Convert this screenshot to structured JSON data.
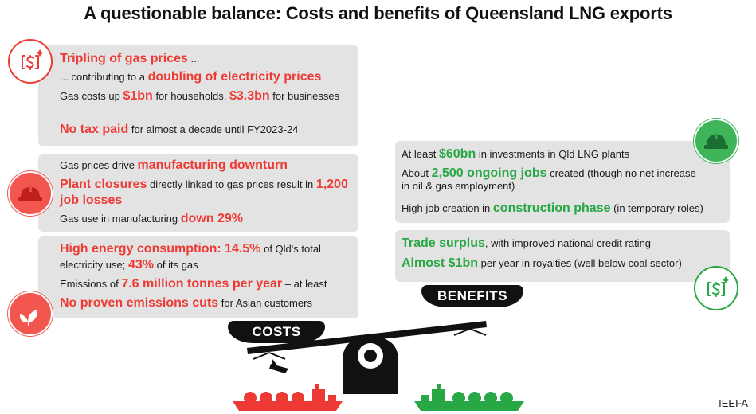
{
  "title": "A questionable balance: Costs and benefits of Queensland LNG exports",
  "costs": {
    "label": "COSTS",
    "box1": {
      "l1": {
        "hl": "Tripling of gas prices",
        "t": " ..."
      },
      "l2": {
        "t": "... contributing to a ",
        "hl": "doubling of electricity prices"
      },
      "l3": {
        "t1": "Gas costs up ",
        "hl1": "$1bn",
        "t2": " for households, ",
        "hl2": "$3.3bn",
        "t3": " for businesses"
      },
      "l4": {
        "hl": "No tax paid",
        "t": " for almost a decade until FY2023-24"
      }
    },
    "box2": {
      "l1": {
        "t": "Gas prices drive ",
        "hl": "manufacturing downturn"
      },
      "l2": {
        "hl1": "Plant closures",
        "t": " directly linked to gas prices result in ",
        "hl2": "1,200 job losses"
      },
      "l3": {
        "t": "Gas use in manufacturing ",
        "hl": "down 29%"
      }
    },
    "box3": {
      "l1": {
        "hl1": "High energy consumption: 14.5%",
        "t1": " of Qld's total electricity use; ",
        "hl2": "43%",
        "t2": " of its gas"
      },
      "l2": {
        "t1": "Emissions of ",
        "hl": "7.6 million tonnes per year",
        "t2": " – at least"
      },
      "l3": {
        "hl": "No proven emissions cuts",
        "t": " for Asian customers"
      }
    }
  },
  "benefits": {
    "label": "BENEFITS",
    "box1": {
      "l1": {
        "t1": "At least ",
        "hl": "$60bn",
        "t2": " in investments in Qld LNG plants"
      },
      "l2": {
        "t1": "About ",
        "hl": "2,500 ongoing jobs",
        "t2": " created (though no net increase in oil & gas employment)"
      },
      "l3": {
        "t1": "High job creation in ",
        "hl": "construction phase",
        "t2": " (in temporary roles)"
      }
    },
    "box2": {
      "l1": {
        "hl": "Trade surplus",
        "t": ", with improved national credit rating"
      },
      "l2": {
        "hl": "Almost $1bn",
        "t": " per year in royalties (well below coal sector)"
      }
    }
  },
  "source": "IEEFA",
  "colors": {
    "cost_red": "#ee3a35",
    "benefit_green": "#27a844",
    "box_grey": "#e3e3e3"
  },
  "icons": [
    "money-icon",
    "hard-hat-icon",
    "leaf-hand-icon",
    "hard-hat-icon",
    "money-icon",
    "scale-icon",
    "lng-tanker-icon"
  ]
}
